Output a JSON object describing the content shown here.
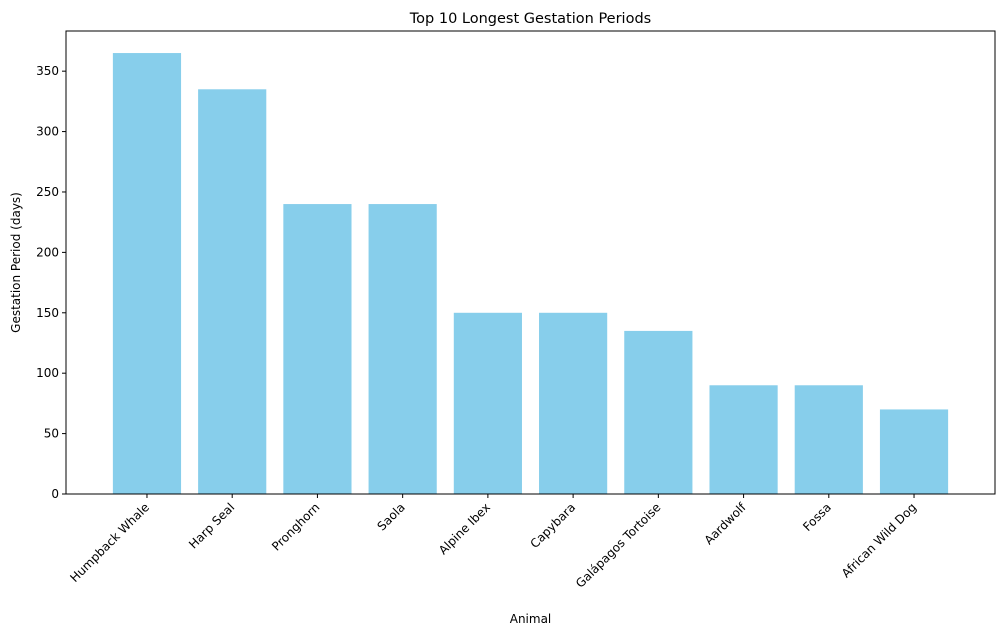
{
  "chart_data": {
    "type": "bar",
    "title": "Top 10 Longest Gestation Periods",
    "xlabel": "Animal",
    "ylabel": "Gestation Period (days)",
    "categories": [
      "Humpback Whale",
      "Harp Seal",
      "Pronghorn",
      "Saola",
      "Alpine Ibex",
      "Capybara",
      "Galápagos Tortoise",
      "Aardwolf",
      "Fossa",
      "African Wild Dog"
    ],
    "values": [
      365,
      335,
      240,
      240,
      150,
      150,
      135,
      90,
      90,
      70
    ],
    "ylim": [
      0,
      383.25
    ],
    "yticks": [
      0,
      50,
      100,
      150,
      200,
      250,
      300,
      350
    ],
    "bar_color": "#87CEEB",
    "grid": false,
    "legend": "none"
  }
}
